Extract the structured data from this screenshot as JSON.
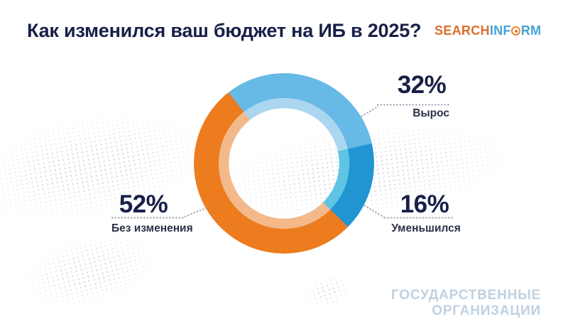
{
  "title": "Как изменился ваш бюджет на ИБ в 2025?",
  "logo": {
    "search": "SEARCH",
    "inf": "INF",
    "rm": "RM"
  },
  "footer": "ГОСУДАРСТВЕННЫЕ ОРГАНИЗАЦИИ",
  "callouts": [
    {
      "value": "32%",
      "label": "Вырос"
    },
    {
      "value": "52%",
      "label": "Без изменения"
    },
    {
      "value": "16%",
      "label": "Уменьшился"
    }
  ],
  "chart_data": {
    "type": "pie",
    "variant": "donut",
    "title": "Как изменился ваш бюджет на ИБ в 2025?",
    "subtitle": "ГОСУДАРСТВЕННЫЕ ОРГАНИЗАЦИИ",
    "categories": [
      "Вырос",
      "Уменьшился",
      "Без изменения"
    ],
    "values": [
      32,
      16,
      52
    ],
    "unit": "%",
    "start_angle_deg": -38,
    "segment_colors": [
      "#67b9e6",
      "#2095d2",
      "#ec7c1e"
    ],
    "segment_colors_inner": [
      "#abd6ef",
      "#5fc4e4",
      "#f3b98b"
    ],
    "legend_position": "callouts",
    "brand_colors": {
      "orange": "#dd6e2e",
      "blue": "#44a2d6"
    }
  }
}
